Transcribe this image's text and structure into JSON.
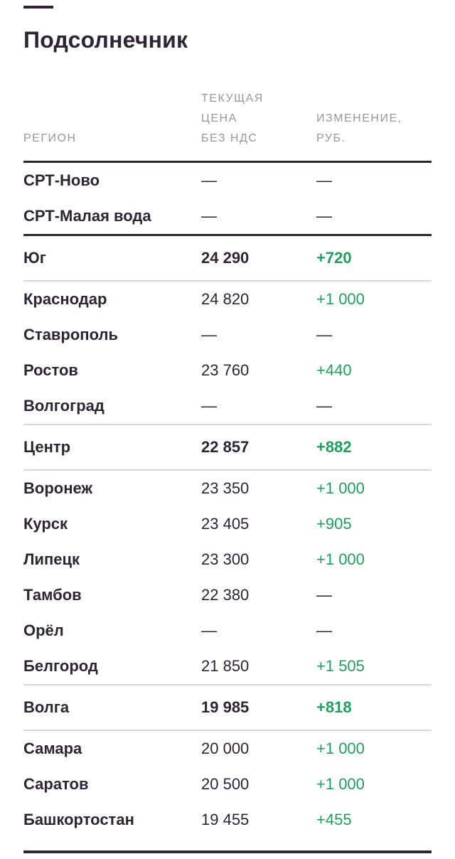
{
  "title": "Подсолнечник",
  "colors": {
    "text": "#2e2434",
    "header_gray": "#98959e",
    "positive_green": "#1f9e5c",
    "divider_light": "#d6d5d8",
    "divider_dark": "#2e2434",
    "background": "#ffffff"
  },
  "table": {
    "columns": [
      {
        "key": "region",
        "label": "РЕГИОН"
      },
      {
        "key": "price",
        "label": "ТЕКУЩАЯ\nЦЕНА\nБЕЗ НДС"
      },
      {
        "key": "change",
        "label": "ИЗМЕНЕНИЕ,\nРУБ."
      }
    ],
    "rows": [
      {
        "region": "СРТ-Ново",
        "price": "—",
        "change": "—",
        "type": "city",
        "divider_below": "none"
      },
      {
        "region": "СРТ-Малая вода",
        "price": "—",
        "change": "—",
        "type": "city",
        "divider_below": "dark"
      },
      {
        "region": "Юг",
        "price": "24 290",
        "change": "+720",
        "type": "section",
        "divider_below": "light"
      },
      {
        "region": "Краснодар",
        "price": "24 820",
        "change": "+1 000",
        "type": "city",
        "divider_below": "none"
      },
      {
        "region": "Ставрополь",
        "price": "—",
        "change": "—",
        "type": "city",
        "divider_below": "none"
      },
      {
        "region": "Ростов",
        "price": "23 760",
        "change": "+440",
        "type": "city",
        "divider_below": "none"
      },
      {
        "region": "Волгоград",
        "price": "—",
        "change": "—",
        "type": "city",
        "divider_below": "light"
      },
      {
        "region": "Центр",
        "price": "22 857",
        "change": "+882",
        "type": "section",
        "divider_below": "light"
      },
      {
        "region": "Воронеж",
        "price": "23 350",
        "change": "+1 000",
        "type": "city",
        "divider_below": "none"
      },
      {
        "region": "Курск",
        "price": "23 405",
        "change": "+905",
        "type": "city",
        "divider_below": "none"
      },
      {
        "region": "Липецк",
        "price": "23 300",
        "change": "+1 000",
        "type": "city",
        "divider_below": "none"
      },
      {
        "region": "Тамбов",
        "price": "22 380",
        "change": "—",
        "type": "city",
        "divider_below": "none"
      },
      {
        "region": "Орёл",
        "price": "—",
        "change": "—",
        "type": "city",
        "divider_below": "none"
      },
      {
        "region": "Белгород",
        "price": "21 850",
        "change": "+1 505",
        "type": "city",
        "divider_below": "light"
      },
      {
        "region": "Волга",
        "price": "19 985",
        "change": "+818",
        "type": "section",
        "divider_below": "light"
      },
      {
        "region": "Самара",
        "price": "20 000",
        "change": "+1 000",
        "type": "city",
        "divider_below": "none"
      },
      {
        "region": "Саратов",
        "price": "20 500",
        "change": "+1 000",
        "type": "city",
        "divider_below": "none"
      },
      {
        "region": "Башкортостан",
        "price": "19 455",
        "change": "+455",
        "type": "city",
        "divider_below": "none"
      }
    ]
  },
  "chart_data": {
    "type": "table",
    "title": "Подсолнечник",
    "columns": [
      "РЕГИОН",
      "ТЕКУЩАЯ ЦЕНА БЕЗ НДС",
      "ИЗМЕНЕНИЕ, РУБ."
    ],
    "rows": [
      [
        "СРТ-Ново",
        "—",
        "—"
      ],
      [
        "СРТ-Малая вода",
        "—",
        "—"
      ],
      [
        "Юг",
        "24 290",
        "+720"
      ],
      [
        "Краснодар",
        "24 820",
        "+1 000"
      ],
      [
        "Ставрополь",
        "—",
        "—"
      ],
      [
        "Ростов",
        "23 760",
        "+440"
      ],
      [
        "Волгоград",
        "—",
        "—"
      ],
      [
        "Центр",
        "22 857",
        "+882"
      ],
      [
        "Воронеж",
        "23 350",
        "+1 000"
      ],
      [
        "Курск",
        "23 405",
        "+905"
      ],
      [
        "Липецк",
        "23 300",
        "+1 000"
      ],
      [
        "Тамбов",
        "22 380",
        "—"
      ],
      [
        "Орёл",
        "—",
        "—"
      ],
      [
        "Белгород",
        "21 850",
        "+1 505"
      ],
      [
        "Волга",
        "19 985",
        "+818"
      ],
      [
        "Самара",
        "20 000",
        "+1 000"
      ],
      [
        "Саратов",
        "20 500",
        "+1 000"
      ],
      [
        "Башкортостан",
        "19 455",
        "+455"
      ]
    ]
  }
}
